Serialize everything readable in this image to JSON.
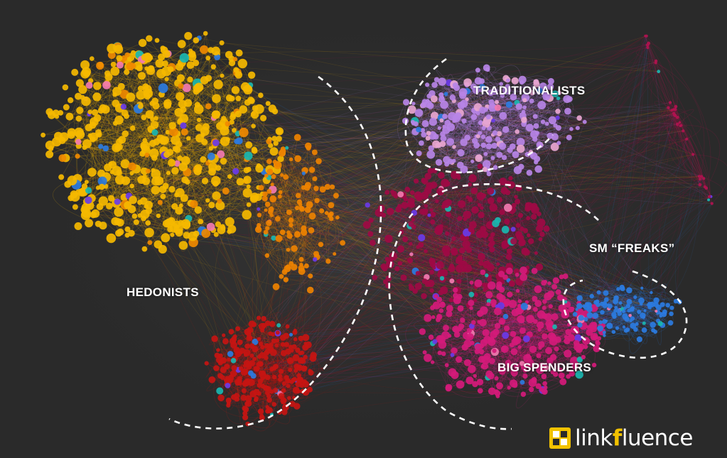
{
  "clusters": [
    {
      "key": "hedonists",
      "label": "HEDONISTS",
      "color": "#f5b800",
      "count": 520
    },
    {
      "key": "orange",
      "label": "",
      "color": "#ee8200",
      "count": 110
    },
    {
      "key": "red",
      "label": "",
      "color": "#c51512",
      "count": 240
    },
    {
      "key": "traditionalists",
      "label": "TRADITIONALISTS",
      "color": "#b784e6",
      "count": 240
    },
    {
      "key": "crimson",
      "label": "",
      "color": "#9e0a44",
      "count": 260
    },
    {
      "key": "bigspenders",
      "label": "BIG SPENDERS",
      "color": "#d41a7a",
      "count": 300
    },
    {
      "key": "smfreaks",
      "label": "SM “FREAKS”",
      "color": "#2b7be0",
      "count": 110
    },
    {
      "key": "outliers",
      "label": "",
      "color": "#b0124f",
      "count": 36
    }
  ],
  "colors": {
    "background": "#2a2a2a",
    "label": "#ffffff",
    "accent_dots": [
      "#1ab6b0",
      "#6a3be8",
      "#f279b0",
      "#2b7be0"
    ],
    "logo_yellow": "#f2c200"
  },
  "logo": {
    "prefix": "link",
    "accent": "f",
    "suffix": "luence",
    "icon": "linkfluence-mark-icon"
  }
}
